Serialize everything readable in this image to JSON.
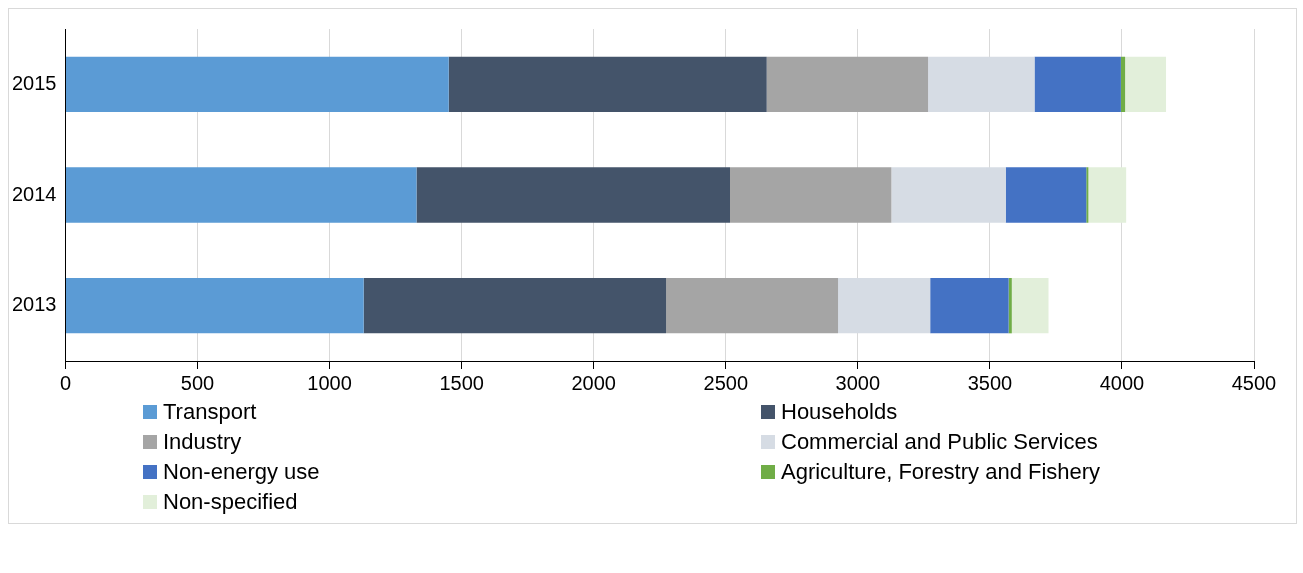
{
  "chart_data": {
    "type": "bar",
    "orientation": "horizontal",
    "stacked": true,
    "categories": [
      "2015",
      "2014",
      "2013"
    ],
    "series": [
      {
        "name": "Transport",
        "color": "#5b9bd5",
        "values": [
          1451,
          1329,
          1129
        ]
      },
      {
        "name": "Households",
        "color": "#44546a",
        "values": [
          1204,
          1187,
          1145
        ]
      },
      {
        "name": "Industry",
        "color": "#a5a5a5",
        "values": [
          611,
          611,
          651
        ]
      },
      {
        "name": "Commercial and Public Services",
        "color": "#d6dce4",
        "values": [
          403,
          433,
          349
        ]
      },
      {
        "name": "Non-energy use",
        "color": "#4472c4",
        "values": [
          327,
          305,
          297
        ]
      },
      {
        "name": "Agriculture, Forestry and Fishery",
        "color": "#70ad47",
        "values": [
          16,
          8,
          12
        ]
      },
      {
        "name": "Non-specified",
        "color": "#e2efda",
        "values": [
          155,
          143,
          139
        ]
      }
    ],
    "xlim": [
      0,
      4500
    ],
    "xticks": [
      0,
      500,
      1000,
      1500,
      2000,
      2500,
      3000,
      3500,
      4000,
      4500
    ],
    "grid": "x",
    "legend": "bottom"
  }
}
